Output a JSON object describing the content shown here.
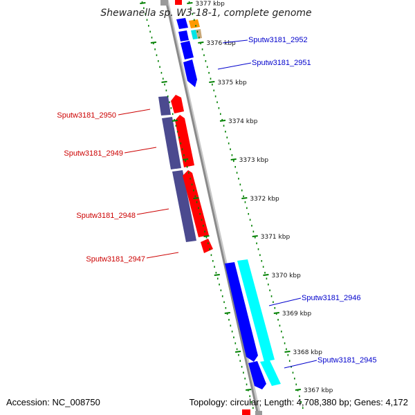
{
  "title": "Shewanella sp. W3-18-1, complete genome",
  "footer": {
    "accession": "Accession: NC_008750",
    "topology": "Topology: circular; Length: 4,708,380 bp; Genes: 4,172"
  },
  "ticks": [
    {
      "label": "3377 kbp"
    },
    {
      "label": "3376 kbp"
    },
    {
      "label": "3375 kbp"
    },
    {
      "label": "3374 kbp"
    },
    {
      "label": "3373 kbp"
    },
    {
      "label": "3372 kbp"
    },
    {
      "label": "3371 kbp"
    },
    {
      "label": "3370 kbp"
    },
    {
      "label": "3369 kbp"
    },
    {
      "label": "3368 kbp"
    },
    {
      "label": "3367 kbp"
    }
  ],
  "gene_labels": {
    "left": [
      "Sputw3181_2950",
      "Sputw3181_2949",
      "Sputw3181_2948",
      "Sputw3181_2947"
    ],
    "right": [
      "Sputw3181_2952",
      "Sputw3181_2951",
      "Sputw3181_2946",
      "Sputw3181_2945"
    ]
  },
  "colors": {
    "backbone": "#8a8a8a",
    "forward_gene": "#ff0000",
    "reverse_gene": "#0000ff",
    "purple_gene": "#4b4a8f",
    "cyan_gene": "#00ffff",
    "orange_gene": "#ff9900",
    "tick": "#008000",
    "left_label": "#cc0000",
    "right_label": "#0000cc"
  }
}
